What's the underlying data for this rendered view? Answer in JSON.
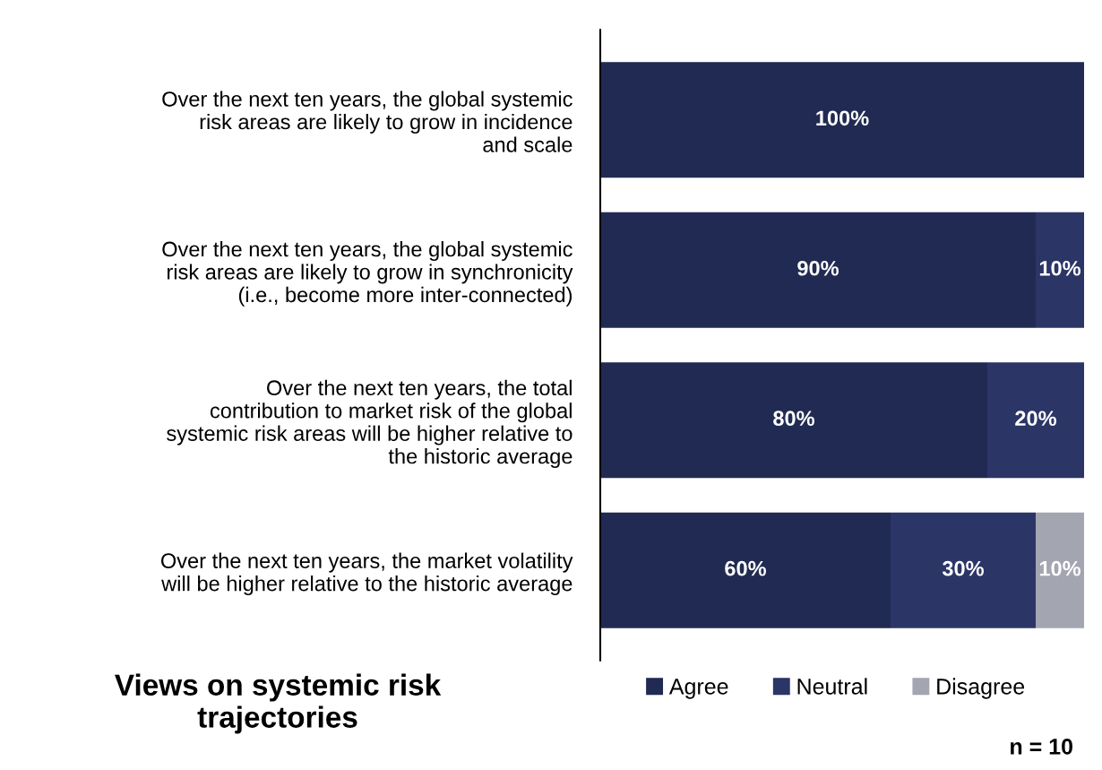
{
  "chart_data": {
    "type": "bar",
    "orientation": "horizontal",
    "stacked": true,
    "title": "Views on systemic risk\ntrajectories",
    "categories": [
      "Over the next ten years, the global systemic\nrisk areas are likely to grow in incidence\nand scale",
      "Over the next ten years, the global systemic\nrisk areas are likely to grow in synchronicity\n(i.e., become more inter-connected)",
      "Over the next ten years, the total\ncontribution to market risk of the global\nsystemic risk areas will be higher relative to\nthe historic average",
      "Over the next ten years, the market volatility\nwill be higher relative to the historic average"
    ],
    "series": [
      {
        "name": "Agree",
        "color": "#212a52",
        "values": [
          100,
          90,
          80,
          60
        ],
        "value_labels": [
          "100%",
          "90%",
          "80%",
          "60%"
        ]
      },
      {
        "name": "Neutral",
        "color": "#2b3566",
        "values": [
          0,
          10,
          20,
          30
        ],
        "value_labels": [
          null,
          "10%",
          "20%",
          "30%"
        ]
      },
      {
        "name": "Disagree",
        "color": "#a3a5b0",
        "values": [
          0,
          0,
          0,
          10
        ],
        "value_labels": [
          null,
          null,
          null,
          "10%"
        ]
      }
    ],
    "annotations": [
      "n = 10"
    ],
    "legend": "bottom",
    "tick_labels": "y",
    "grid": false
  }
}
